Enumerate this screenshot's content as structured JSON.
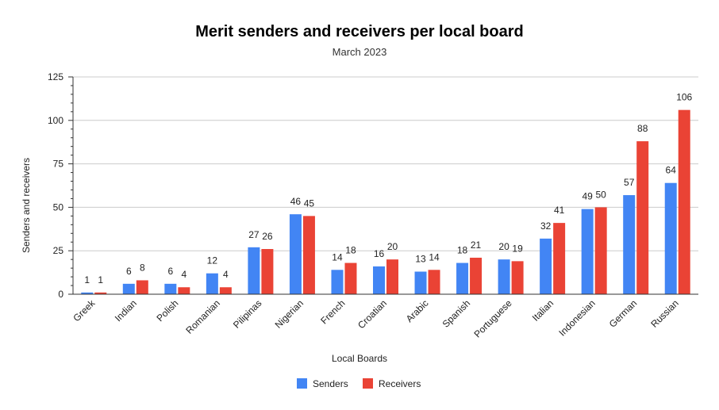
{
  "chart_data": {
    "type": "bar",
    "title": "Merit senders and receivers per local board",
    "subtitle": "March 2023",
    "xlabel": "Local Boards",
    "ylabel": "Senders and receivers",
    "ylim": [
      0,
      125
    ],
    "yticks": [
      0,
      25,
      50,
      75,
      100,
      125
    ],
    "grid": true,
    "legend_position": "bottom",
    "categories": [
      "Greek",
      "Indian",
      "Polish",
      "Romanian",
      "Pilipinas",
      "Nigerian",
      "French",
      "Croatian",
      "Arabic",
      "Spanish",
      "Portuguese",
      "Italian",
      "Indonesian",
      "German",
      "Russian"
    ],
    "series": [
      {
        "name": "Senders",
        "color": "#4285F4",
        "values": [
          1,
          6,
          6,
          12,
          27,
          46,
          14,
          16,
          13,
          18,
          20,
          32,
          49,
          57,
          64
        ]
      },
      {
        "name": "Receivers",
        "color": "#EA4335",
        "values": [
          1,
          8,
          4,
          4,
          26,
          45,
          18,
          20,
          14,
          21,
          19,
          41,
          50,
          88,
          106
        ]
      }
    ]
  }
}
